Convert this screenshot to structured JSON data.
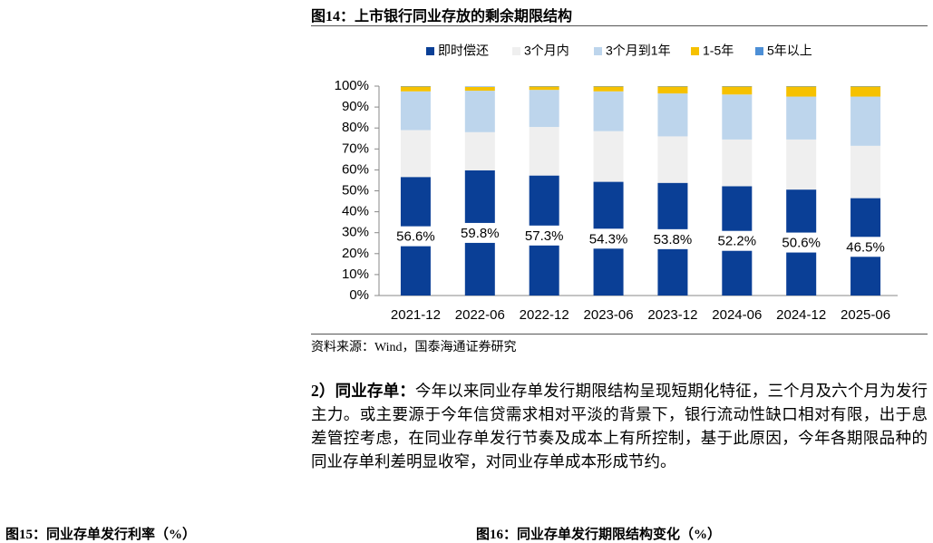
{
  "document": {
    "figure_title": "图14：上市银行同业存放的剩余期限结构",
    "source": "资料来源：Wind，国泰海通证券研究",
    "paragraph": {
      "lead": "2）同业存单：",
      "text": "今年以来同业存单发行期限结构呈现短期化特征，三个月及六个月为发行主力。或主要源于今年信贷需求相对平淡的背景下，银行流动性缺口相对有限，出于息差管控考虑，在同业存单发行节奏及成本上有所控制，基于此原因，今年各期限品种的同业存单利差明显收窄，对同业存单成本形成节约。"
    },
    "next_captions": [
      "图15：同业存单发行利率（%）",
      "图16：同业存单发行期限结构变化（%）"
    ]
  },
  "chart_data": {
    "type": "stacked_bar",
    "categories": [
      "2021-12",
      "2022-06",
      "2022-12",
      "2023-06",
      "2023-12",
      "2024-06",
      "2024-12",
      "2025-06"
    ],
    "series": [
      {
        "name": "即时偿还",
        "color": "#0a3f96",
        "values": [
          56.6,
          59.8,
          57.3,
          54.3,
          53.8,
          52.2,
          50.6,
          46.5
        ],
        "value_labels": [
          "56.6%",
          "59.8%",
          "57.3%",
          "54.3%",
          "53.8%",
          "52.2%",
          "50.6%",
          "46.5%"
        ]
      },
      {
        "name": "3个月内",
        "color": "#efefef",
        "values": [
          22.4,
          18.2,
          23.2,
          24.2,
          22.2,
          22.3,
          23.9,
          25.0
        ]
      },
      {
        "name": "3个月到1年",
        "color": "#bdd5ec",
        "values": [
          18.5,
          19.8,
          17.7,
          19.0,
          20.5,
          21.5,
          20.5,
          23.5
        ]
      },
      {
        "name": "1-5年",
        "color": "#f6c100",
        "values": [
          2.3,
          1.8,
          1.6,
          2.3,
          3.3,
          3.8,
          4.8,
          4.8
        ]
      },
      {
        "name": "5年以上",
        "color": "#4d8fd6",
        "values": [
          0.2,
          0.2,
          0.2,
          0.2,
          0.2,
          0.2,
          0.2,
          0.2
        ]
      }
    ],
    "ylim": [
      0,
      100
    ],
    "yticks": [
      {
        "value": 0,
        "label": "0%"
      },
      {
        "value": 10,
        "label": "10%"
      },
      {
        "value": 20,
        "label": "20%"
      },
      {
        "value": 30,
        "label": "30%"
      },
      {
        "value": 40,
        "label": "40%"
      },
      {
        "value": 50,
        "label": "50%"
      },
      {
        "value": 60,
        "label": "60%"
      },
      {
        "value": 70,
        "label": "70%"
      },
      {
        "value": 80,
        "label": "80%"
      },
      {
        "value": 90,
        "label": "90%"
      },
      {
        "value": 100,
        "label": "100%"
      }
    ]
  }
}
